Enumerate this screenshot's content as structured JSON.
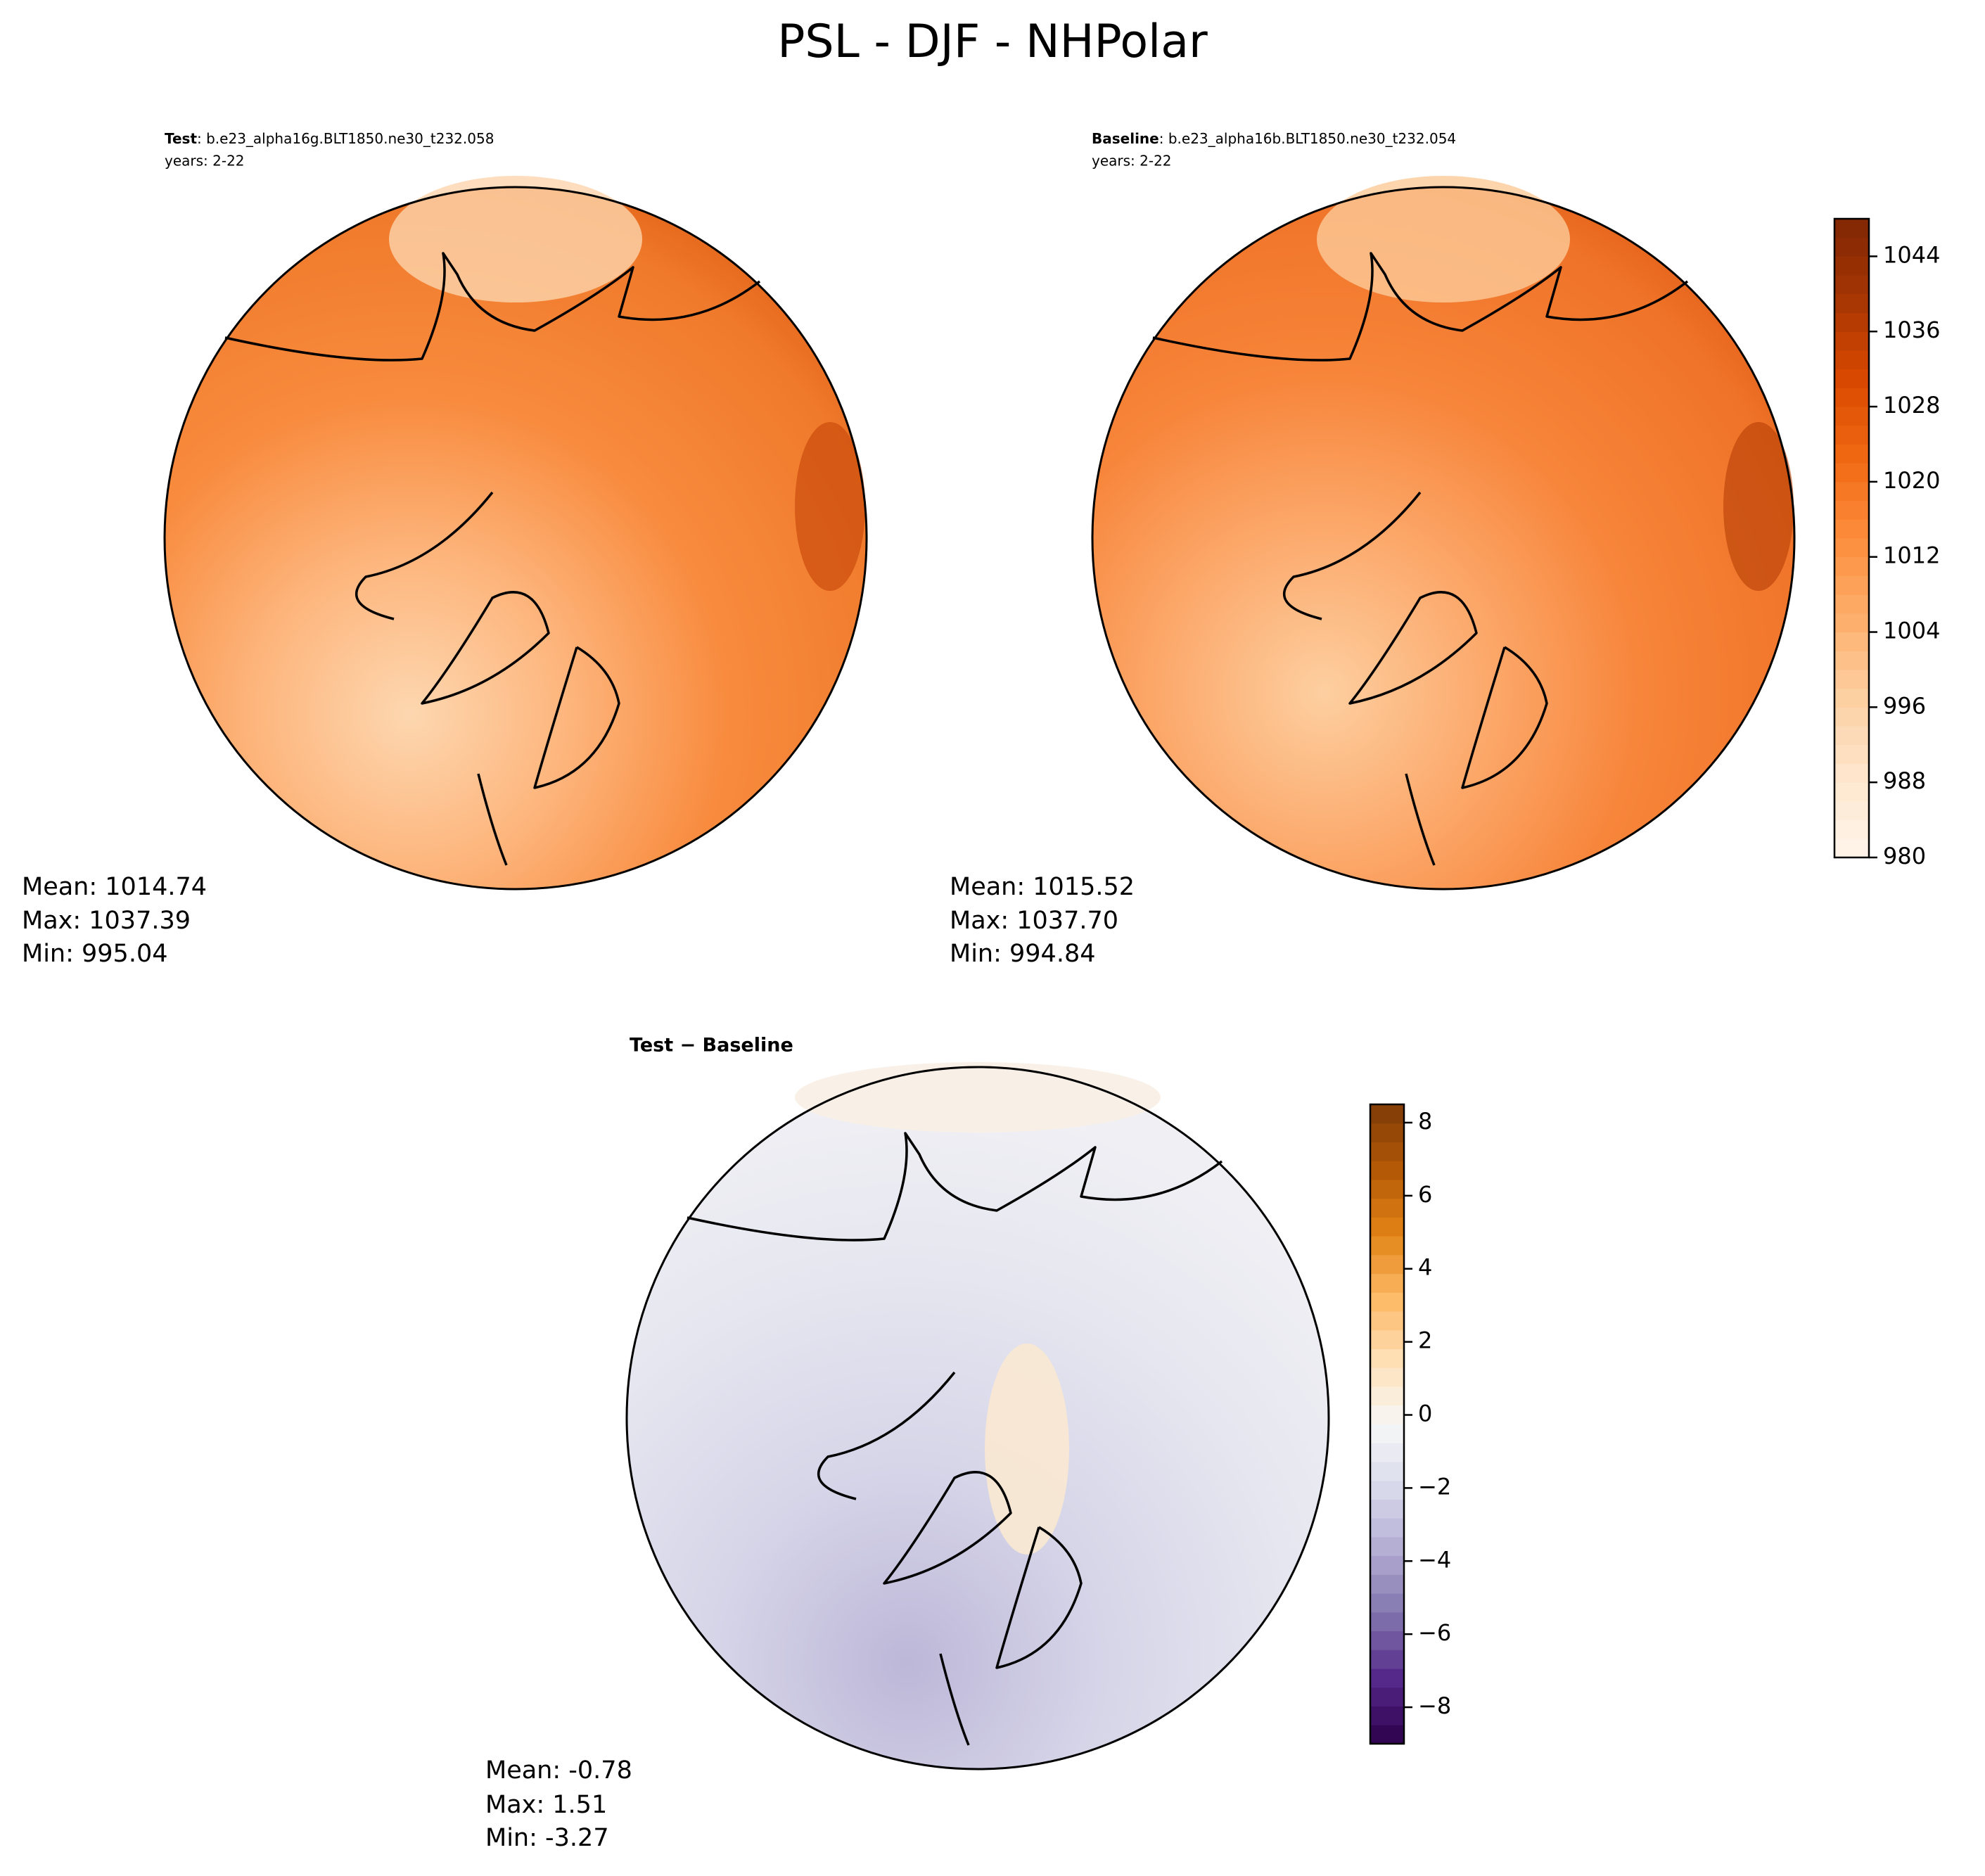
{
  "title": "PSL - DJF - NHPolar",
  "panels": [
    {
      "label": "Test",
      "case": ": b.e23_alpha16g.BLT1850.ne30_t232.058",
      "years": "years: 2-22",
      "stats": [
        "Mean: 1014.74",
        "Max: 1037.39",
        "Min: 995.04"
      ]
    },
    {
      "label": "Baseline",
      "case": ": b.e23_alpha16b.BLT1850.ne30_t232.054",
      "years": "years: 2-22",
      "stats": [
        "Mean: 1015.52",
        "Max: 1037.70",
        "Min: 994.84"
      ]
    },
    {
      "label": "Test − Baseline",
      "stats": [
        "Mean: -0.78",
        "Max:  1.51",
        "Min: -3.27"
      ]
    }
  ],
  "colorbars": [
    {
      "ylim": [
        980,
        1048
      ],
      "yticks": [
        980,
        988,
        996,
        1004,
        1012,
        1020,
        1028,
        1036,
        1044
      ],
      "colors": [
        "#fff5eb",
        "#fee6ce",
        "#fdd0a2",
        "#fdae6b",
        "#fd8d3c",
        "#f16913",
        "#d94801",
        "#a63603",
        "#7f2704"
      ]
    },
    {
      "ylim": [
        -9,
        8.5
      ],
      "yticks": [
        {
          "value": -8,
          "label": "−8"
        },
        {
          "value": -6,
          "label": "−6"
        },
        {
          "value": -4,
          "label": "−4"
        },
        {
          "value": -2,
          "label": "−2"
        },
        0,
        2,
        4,
        6,
        8
      ],
      "colors": [
        "#2d004b",
        "#542788",
        "#8073ac",
        "#b2abd2",
        "#d8daeb",
        "#f7f7f7",
        "#fee0b6",
        "#fdb863",
        "#e08214",
        "#b35806",
        "#7f3b08"
      ]
    }
  ]
}
